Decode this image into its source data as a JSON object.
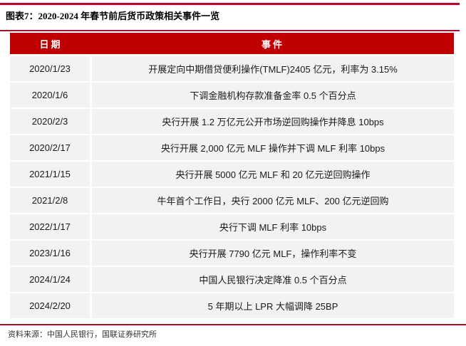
{
  "page": {
    "title": "图表7：2020-2024 年春节前后货币政策相关事件一览",
    "source": "资料来源：中国人民银行，国联证券研究所"
  },
  "colors": {
    "header_red": "#C00000",
    "rule_red": "#A8102C",
    "row_bg": "#F2F2F2",
    "header_text": "#FFFFFF",
    "body_text": "#1A1A1A"
  },
  "chart_data": {
    "type": "table",
    "title": "图表7：2020-2024 年春节前后货币政策相关事件一览",
    "columns": [
      "日期",
      "事件"
    ],
    "rows": [
      {
        "date": "2020/1/23",
        "event": "开展定向中期借贷便利操作(TMLF)2405 亿元，利率为 3.15%"
      },
      {
        "date": "2020/1/6",
        "event": "下调金融机构存款准备金率 0.5 个百分点"
      },
      {
        "date": "2020/2/3",
        "event": "央行开展 1.2 万亿元公开市场逆回购操作并降息 10bps"
      },
      {
        "date": "2020/2/17",
        "event": "央行开展 2,000 亿元 MLF 操作并下调 MLF 利率 10bps"
      },
      {
        "date": "2021/1/15",
        "event": "央行开展 5000 亿元 MLF 和 20 亿元逆回购操作"
      },
      {
        "date": "2021/2/8",
        "event": "牛年首个工作日，央行 2000 亿元 MLF、200 亿元逆回购"
      },
      {
        "date": "2022/1/17",
        "event": "央行下调 MLF 利率 10bps"
      },
      {
        "date": "2023/1/16",
        "event": "央行开展 7790 亿元 MLF，操作利率不变"
      },
      {
        "date": "2024/1/24",
        "event": "中国人民银行决定降准 0.5 个百分点"
      },
      {
        "date": "2024/2/20",
        "event": "5 年期以上 LPR 大幅调降 25BP"
      }
    ]
  }
}
